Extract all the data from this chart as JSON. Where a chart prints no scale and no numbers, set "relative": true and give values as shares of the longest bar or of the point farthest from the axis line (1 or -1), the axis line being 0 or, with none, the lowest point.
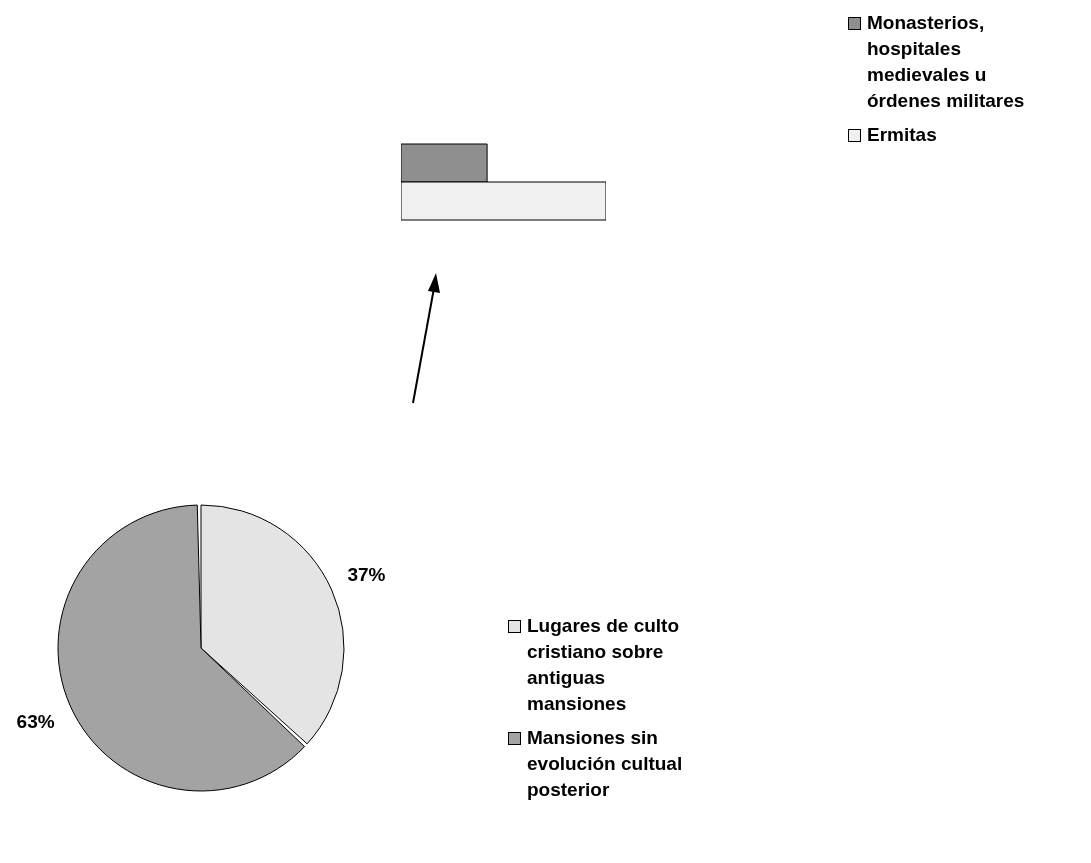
{
  "chart_data": [
    {
      "type": "pie",
      "categories": [
        "Lugares de culto cristiano sobre antiguas mansiones",
        "Mansiones sin evolución cultual posterior"
      ],
      "values": [
        37,
        63
      ],
      "colors": [
        "#e4e4e4",
        "#a3a3a3"
      ],
      "value_labels": [
        "37%",
        "63%"
      ],
      "legend": "right"
    },
    {
      "type": "bar",
      "orientation": "horizontal",
      "relative": true,
      "categories": [
        null
      ],
      "legend": "top right",
      "series": [
        {
          "name": "Monasterios, hospitales medievales u órdenes militares",
          "color": "#8f8f8f",
          "values": [
            0.42
          ]
        },
        {
          "name": "Ermitas",
          "color": "#f0f0f0",
          "values": [
            1
          ]
        }
      ]
    }
  ]
}
